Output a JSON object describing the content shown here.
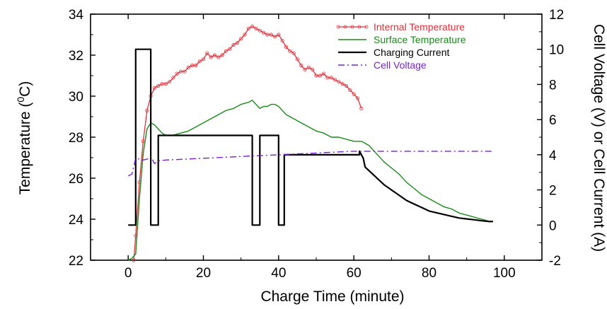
{
  "chart_data": {
    "type": "line",
    "title": "",
    "xlabel": "Charge Time (minute)",
    "ylabel_left": "Temperature (",
    "ylabel_left_sup": "0",
    "ylabel_left_unit": "C)",
    "ylabel_right": "Cell Voltage (V) or Cell Current (A)",
    "xlim": [
      -10,
      110
    ],
    "ylim_left": [
      22,
      34
    ],
    "ylim_right": [
      -2,
      12
    ],
    "x_ticks": [
      "0",
      "20",
      "40",
      "60",
      "80",
      "100"
    ],
    "y_left_ticks": [
      "22",
      "24",
      "26",
      "28",
      "30",
      "32",
      "34"
    ],
    "y_right_ticks": [
      "-2",
      "0",
      "2",
      "4",
      "6",
      "8",
      "10",
      "12"
    ],
    "grid": false,
    "legend_position": "top-right",
    "series": [
      {
        "name": "Internal Temperature",
        "axis": "left",
        "color": "#e0303a",
        "x": [
          1.5,
          2,
          3,
          4,
          5,
          6,
          7,
          8,
          9,
          10,
          11,
          12,
          13,
          14,
          15,
          16,
          17,
          18,
          19,
          20,
          21,
          22,
          23,
          24,
          25,
          26,
          27,
          28,
          29,
          30,
          31,
          32,
          33,
          34,
          35,
          36,
          37,
          38,
          39,
          40,
          41,
          42,
          43,
          44,
          45,
          46,
          47,
          48,
          49,
          50,
          51,
          52,
          53,
          54,
          55,
          56,
          57,
          58,
          59,
          60,
          61,
          62
        ],
        "y": [
          22.0,
          23.2,
          25.8,
          27.8,
          29.3,
          30.0,
          30.4,
          30.5,
          30.6,
          30.6,
          30.7,
          30.9,
          31.1,
          31.2,
          31.2,
          31.4,
          31.5,
          31.5,
          31.7,
          31.8,
          32.1,
          31.9,
          32.0,
          31.9,
          32.0,
          32.2,
          32.3,
          32.5,
          32.6,
          32.8,
          33.0,
          33.3,
          33.4,
          33.3,
          33.2,
          33.1,
          33.0,
          33.0,
          32.9,
          33.0,
          32.7,
          32.4,
          32.2,
          32.1,
          31.8,
          31.5,
          31.3,
          31.4,
          31.3,
          31.0,
          31.0,
          31.1,
          30.9,
          30.9,
          30.8,
          30.7,
          30.6,
          30.5,
          30.3,
          30.1,
          29.9,
          29.4
        ]
      },
      {
        "name": "Surface Temperature",
        "axis": "left",
        "color": "#1a8a1a",
        "x": [
          0,
          1,
          2,
          3,
          4,
          5,
          6,
          7,
          8,
          9,
          10,
          12,
          14,
          16,
          18,
          20,
          22,
          24,
          26,
          28,
          30,
          32,
          33,
          34,
          35,
          36,
          37,
          38,
          39,
          40,
          41,
          42,
          44,
          46,
          48,
          50,
          52,
          54,
          56,
          58,
          60,
          62,
          64,
          66,
          68,
          70,
          72,
          74,
          76,
          78,
          80,
          82,
          84,
          86,
          88,
          90,
          92,
          94,
          96,
          97
        ],
        "y": [
          22.0,
          22.1,
          22.3,
          25.0,
          27.2,
          28.4,
          28.7,
          28.6,
          28.4,
          28.2,
          28.1,
          28.1,
          28.2,
          28.3,
          28.5,
          28.7,
          28.9,
          29.1,
          29.3,
          29.4,
          29.6,
          29.7,
          29.8,
          29.6,
          29.4,
          29.5,
          29.5,
          29.6,
          29.6,
          29.5,
          29.3,
          29.1,
          28.9,
          28.7,
          28.5,
          28.3,
          28.2,
          28.0,
          28.0,
          27.9,
          27.8,
          27.8,
          27.6,
          27.2,
          26.8,
          26.5,
          26.2,
          25.8,
          25.5,
          25.2,
          25.0,
          24.8,
          24.6,
          24.5,
          24.3,
          24.2,
          24.1,
          24.0,
          23.9,
          23.9
        ]
      },
      {
        "name": "Charging Current",
        "axis": "right",
        "color": "#000000",
        "x": [
          0,
          2,
          2,
          6,
          6,
          8,
          8,
          33,
          33,
          35,
          35,
          40,
          40,
          41.5,
          41.5,
          61.5,
          61.5,
          62.5,
          63,
          64,
          66,
          68,
          70,
          72,
          74,
          76,
          78,
          80,
          82,
          84,
          86,
          88,
          90,
          92,
          94,
          96,
          97
        ],
        "y": [
          0,
          0,
          10,
          10,
          0,
          0,
          5.1,
          5.1,
          0,
          0,
          5.1,
          5.1,
          0,
          0,
          4.0,
          4.0,
          4.2,
          3.8,
          3.3,
          3.1,
          2.7,
          2.3,
          2.0,
          1.7,
          1.4,
          1.2,
          1.0,
          0.8,
          0.7,
          0.6,
          0.5,
          0.4,
          0.35,
          0.3,
          0.25,
          0.2,
          0.2
        ]
      },
      {
        "name": "Cell Voltage",
        "axis": "right",
        "color": "#7a22cc",
        "x": [
          0,
          1,
          2,
          3,
          4,
          5,
          6,
          7,
          8,
          10,
          15,
          20,
          25,
          30,
          35,
          40,
          45,
          50,
          55,
          60,
          62,
          65,
          70,
          80,
          90,
          97
        ],
        "y": [
          2.8,
          2.9,
          3.8,
          3.75,
          3.7,
          3.75,
          3.9,
          3.5,
          3.65,
          3.7,
          3.75,
          3.8,
          3.85,
          3.9,
          3.95,
          4.0,
          4.05,
          4.1,
          4.15,
          4.2,
          4.2,
          4.2,
          4.2,
          4.2,
          4.2,
          4.2
        ]
      }
    ]
  }
}
